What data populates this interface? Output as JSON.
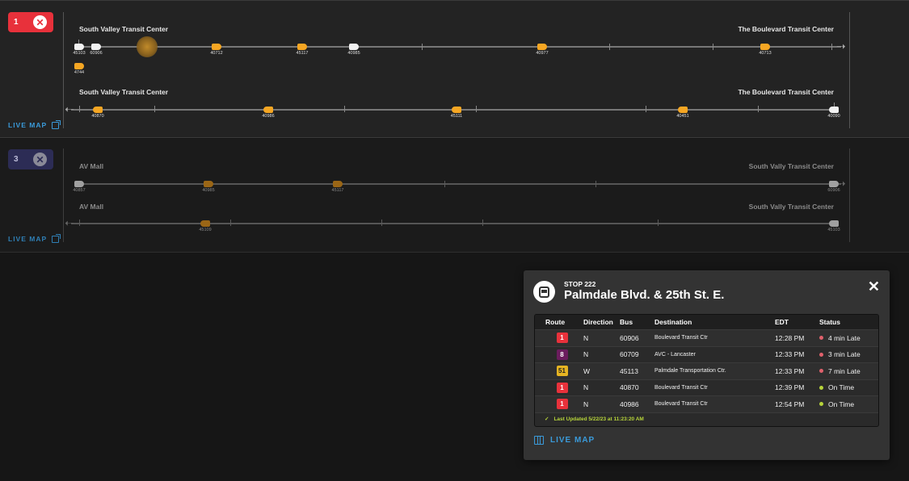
{
  "routes": [
    {
      "number": "1",
      "color": "#e8313b",
      "live_map": "LIVE MAP",
      "outbound": {
        "from": "South Valley Transit Center",
        "to": "The Boulevard Transit Center",
        "buses": [
          "45103",
          "60906",
          "40712",
          "45117",
          "40985",
          "40977",
          "40713",
          "4744"
        ]
      },
      "inbound": {
        "from": "South Valley Transit Center",
        "to": "The Boulevard Transit Center",
        "buses": [
          "40870",
          "40986",
          "45111",
          "40451",
          "40090"
        ]
      }
    },
    {
      "number": "3",
      "color": "#2c2c55",
      "live_map": "LIVE MAP",
      "outbound": {
        "from": "AV Mall",
        "to": "South Vally Transit Center",
        "buses": [
          "40857",
          "40985",
          "45117",
          "60906"
        ]
      },
      "inbound": {
        "from": "AV Mall",
        "to": "South Vally Transit Center",
        "buses": [
          "45109",
          "45103"
        ]
      }
    }
  ],
  "popup": {
    "stop_number": "STOP 222",
    "stop_name": "Palmdale Blvd. & 25th St. E.",
    "icon": "bus-icon",
    "columns": [
      "Route",
      "Direction",
      "Bus",
      "Destination",
      "EDT",
      "Status"
    ],
    "rows": [
      {
        "route": "1",
        "route_color": "#e8313b",
        "direction": "N",
        "bus": "60906",
        "destination": "Boulevard Transit Ctr",
        "edt": "12:28 PM",
        "status": "4 min Late",
        "status_color": "#e0616c"
      },
      {
        "route": "8",
        "route_color": "#6b1d5e",
        "direction": "N",
        "bus": "60709",
        "destination": "AVC - Lancaster",
        "edt": "12:33 PM",
        "status": "3 min Late",
        "status_color": "#e0616c"
      },
      {
        "route": "51",
        "route_color": "#e6b422",
        "direction": "W",
        "bus": "45113",
        "destination": "Palmdale Transportation Ctr.",
        "edt": "12:33 PM",
        "status": "7 min Late",
        "status_color": "#e0616c"
      },
      {
        "route": "1",
        "route_color": "#e8313b",
        "direction": "N",
        "bus": "40870",
        "destination": "Boulevard Transit Ctr",
        "edt": "12:39 PM",
        "status": "On Time",
        "status_color": "#b7d43a"
      },
      {
        "route": "1",
        "route_color": "#e8313b",
        "direction": "N",
        "bus": "40986",
        "destination": "Boulevard Transit Ctr",
        "edt": "12:54 PM",
        "status": "On Time",
        "status_color": "#b7d43a"
      }
    ],
    "last_updated": "Last Updated 5/22/23 at 11:23:20 AM",
    "live_map": "LIVE MAP"
  }
}
